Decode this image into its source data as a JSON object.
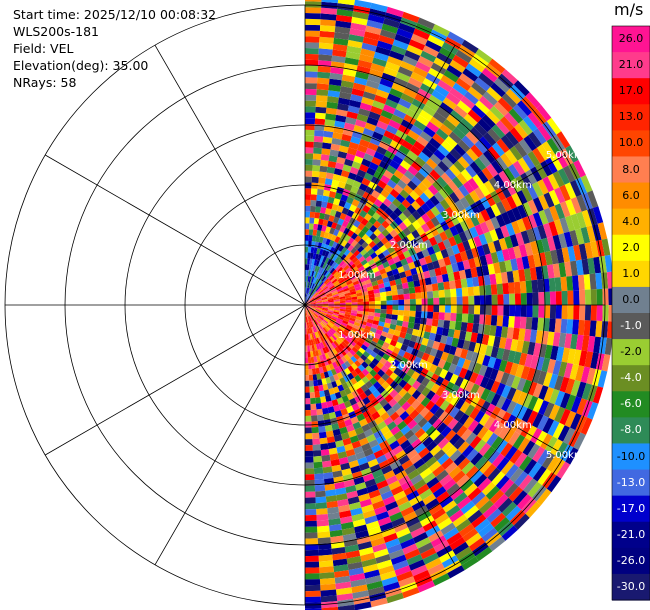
{
  "info": {
    "start_time": "Start time: 2025/12/10 00:08:32",
    "instrument": "WLS200s-181",
    "field": "Field: VEL",
    "elevation": "Elevation(deg): 35.00",
    "nrays": "NRays: 58"
  },
  "colorbar": {
    "unit": "m/s",
    "ticks": [
      "26.0",
      "21.0",
      "17.0",
      "13.0",
      "10.0",
      "8.0",
      "6.0",
      "4.0",
      "2.0",
      "1.0",
      "0.0",
      "-1.0",
      "-2.0",
      "-4.0",
      "-6.0",
      "-8.0",
      "-10.0",
      "-13.0",
      "-17.0",
      "-21.0",
      "-26.0",
      "-30.0"
    ],
    "colors": [
      "#ff1493",
      "#ff3b8c",
      "#ff0000",
      "#ff2400",
      "#ff4500",
      "#ff7f50",
      "#ff8c00",
      "#ffb000",
      "#ffff00",
      "#ffd700",
      "#708090",
      "#5a5a5a",
      "#9acd32",
      "#6b8e23",
      "#228b22",
      "#2e8b57",
      "#1e90ff",
      "#4169e1",
      "#0000cd",
      "#00008b",
      "#000080",
      "#191970"
    ]
  },
  "chart_data": {
    "type": "polar velocity scan (PPI)",
    "field": "VEL",
    "units": "m/s",
    "elevation_deg": 35.0,
    "n_rays": 58,
    "azimuth_coverage_deg": [
      0,
      180
    ],
    "range_ring_labels": [
      "1.00km",
      "2.00km",
      "3.00km",
      "4.00km",
      "5.00km"
    ],
    "range_rings_km": [
      1,
      2,
      3,
      4,
      5
    ],
    "max_range_km": 5.3,
    "color_scale": {
      "levels": [
        -30,
        -26,
        -21,
        -17,
        -13,
        -10,
        -8,
        -6,
        -4,
        -2,
        -1,
        0,
        1,
        2,
        4,
        6,
        8,
        10,
        13,
        17,
        21,
        26,
        30
      ]
    },
    "legend": "right"
  }
}
